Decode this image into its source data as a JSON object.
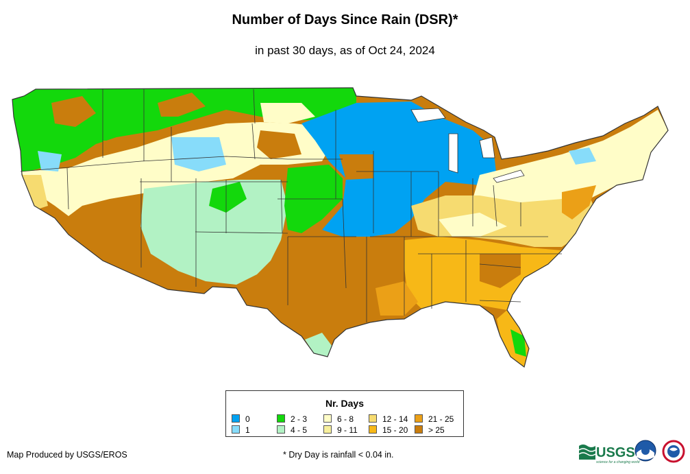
{
  "header": {
    "title": "Number of Days Since Rain (DSR)*",
    "subtitle": "in past 30 days, as of Oct 24, 2024"
  },
  "legend": {
    "title": "Nr. Days",
    "items": [
      {
        "label": "0",
        "color": "#00a2f2"
      },
      {
        "label": "1",
        "color": "#87dcfa"
      },
      {
        "label": "2 - 3",
        "color": "#13d80c"
      },
      {
        "label": "4 - 5",
        "color": "#b2f2c4"
      },
      {
        "label": "6 - 8",
        "color": "#fffdc8"
      },
      {
        "label": "9 - 11",
        "color": "#f8f09d"
      },
      {
        "label": "12 - 14",
        "color": "#f6db70"
      },
      {
        "label": "15 - 20",
        "color": "#f7b817"
      },
      {
        "label": "21 - 25",
        "color": "#eba017"
      },
      {
        "label": "> 25",
        "color": "#c97d0d"
      }
    ]
  },
  "footer": {
    "credit": "Map Produced by USGS/EROS",
    "footnote": "* Dry Day is rainfall < 0.04 in.",
    "usgs_logo_text": "USGS",
    "usgs_tagline": "science for a changing world"
  },
  "colors": {
    "state_border": "#333333",
    "ocean": "#ffffff"
  }
}
